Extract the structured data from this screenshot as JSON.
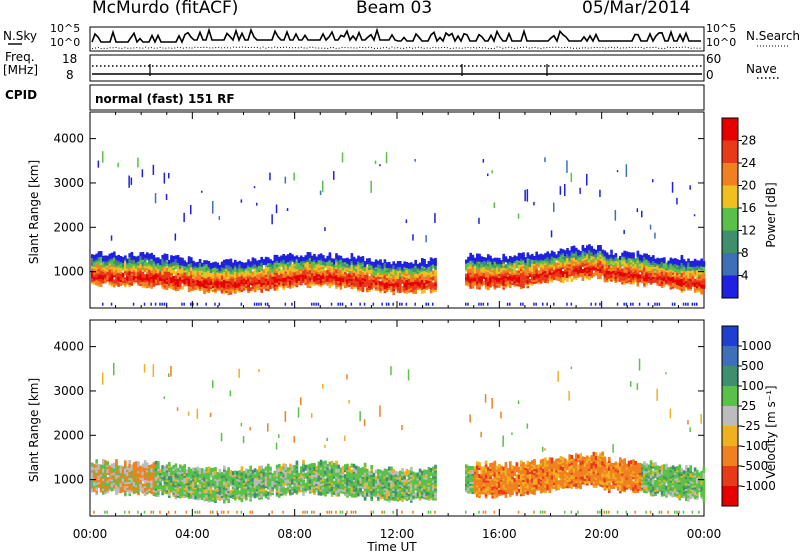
{
  "header": {
    "station": "McMurdo (fitACF)",
    "beam": "Beam 03",
    "date": "05/Mar/2014"
  },
  "top_panels": {
    "nsky_label": "N.Sky",
    "nsky_ticks": [
      "10^5",
      "10^0"
    ],
    "nsearch_label": "N.Search",
    "nsearch_ticks": [
      "10^5",
      "10^0"
    ],
    "freq_label_1": "Freq.",
    "freq_label_2": "[MHz]",
    "freq_ticks": [
      "18",
      "8"
    ],
    "nave_label": "Nave",
    "nave_ticks": [
      "60",
      "0"
    ],
    "cpid_label": "CPID",
    "cpid_text": "normal (fast) 151 RF"
  },
  "chart_data": [
    {
      "type": "heatmap",
      "title": "",
      "ylabel": "Slant Range [km]",
      "ylim": [
        180,
        4600
      ],
      "yticks": [
        "1000",
        "2000",
        "3000",
        "4000"
      ],
      "colorbar_label": "Power [dB]",
      "colorbar_ticks": [
        "4",
        "8",
        "12",
        "16",
        "20",
        "24",
        "28"
      ],
      "colorbar_colors": [
        "#2020e0",
        "#3f6fb8",
        "#3f8f6f",
        "#5ac04a",
        "#f0c020",
        "#f08020",
        "#e83a1a",
        "#e60000"
      ]
    },
    {
      "type": "heatmap",
      "title": "",
      "xlabel": "Time UT",
      "ylabel": "Slant Range [km]",
      "ylim": [
        180,
        4600
      ],
      "yticks": [
        "1000",
        "2000",
        "3000",
        "4000"
      ],
      "xticks": [
        "00:00",
        "04:00",
        "08:00",
        "12:00",
        "16:00",
        "20:00",
        "00:00"
      ],
      "colorbar_label": "Velocity [m s⁻¹]",
      "colorbar_ticks": [
        "1000",
        "500",
        "100",
        "25",
        "-25",
        "-100",
        "-500",
        "-1000"
      ],
      "colorbar_colors": [
        "#1f3fd0",
        "#3f6fb8",
        "#3f8f6f",
        "#5ac04a",
        "#bcbcbc",
        "#f0b020",
        "#f08020",
        "#e83a1a",
        "#e60000"
      ]
    }
  ]
}
